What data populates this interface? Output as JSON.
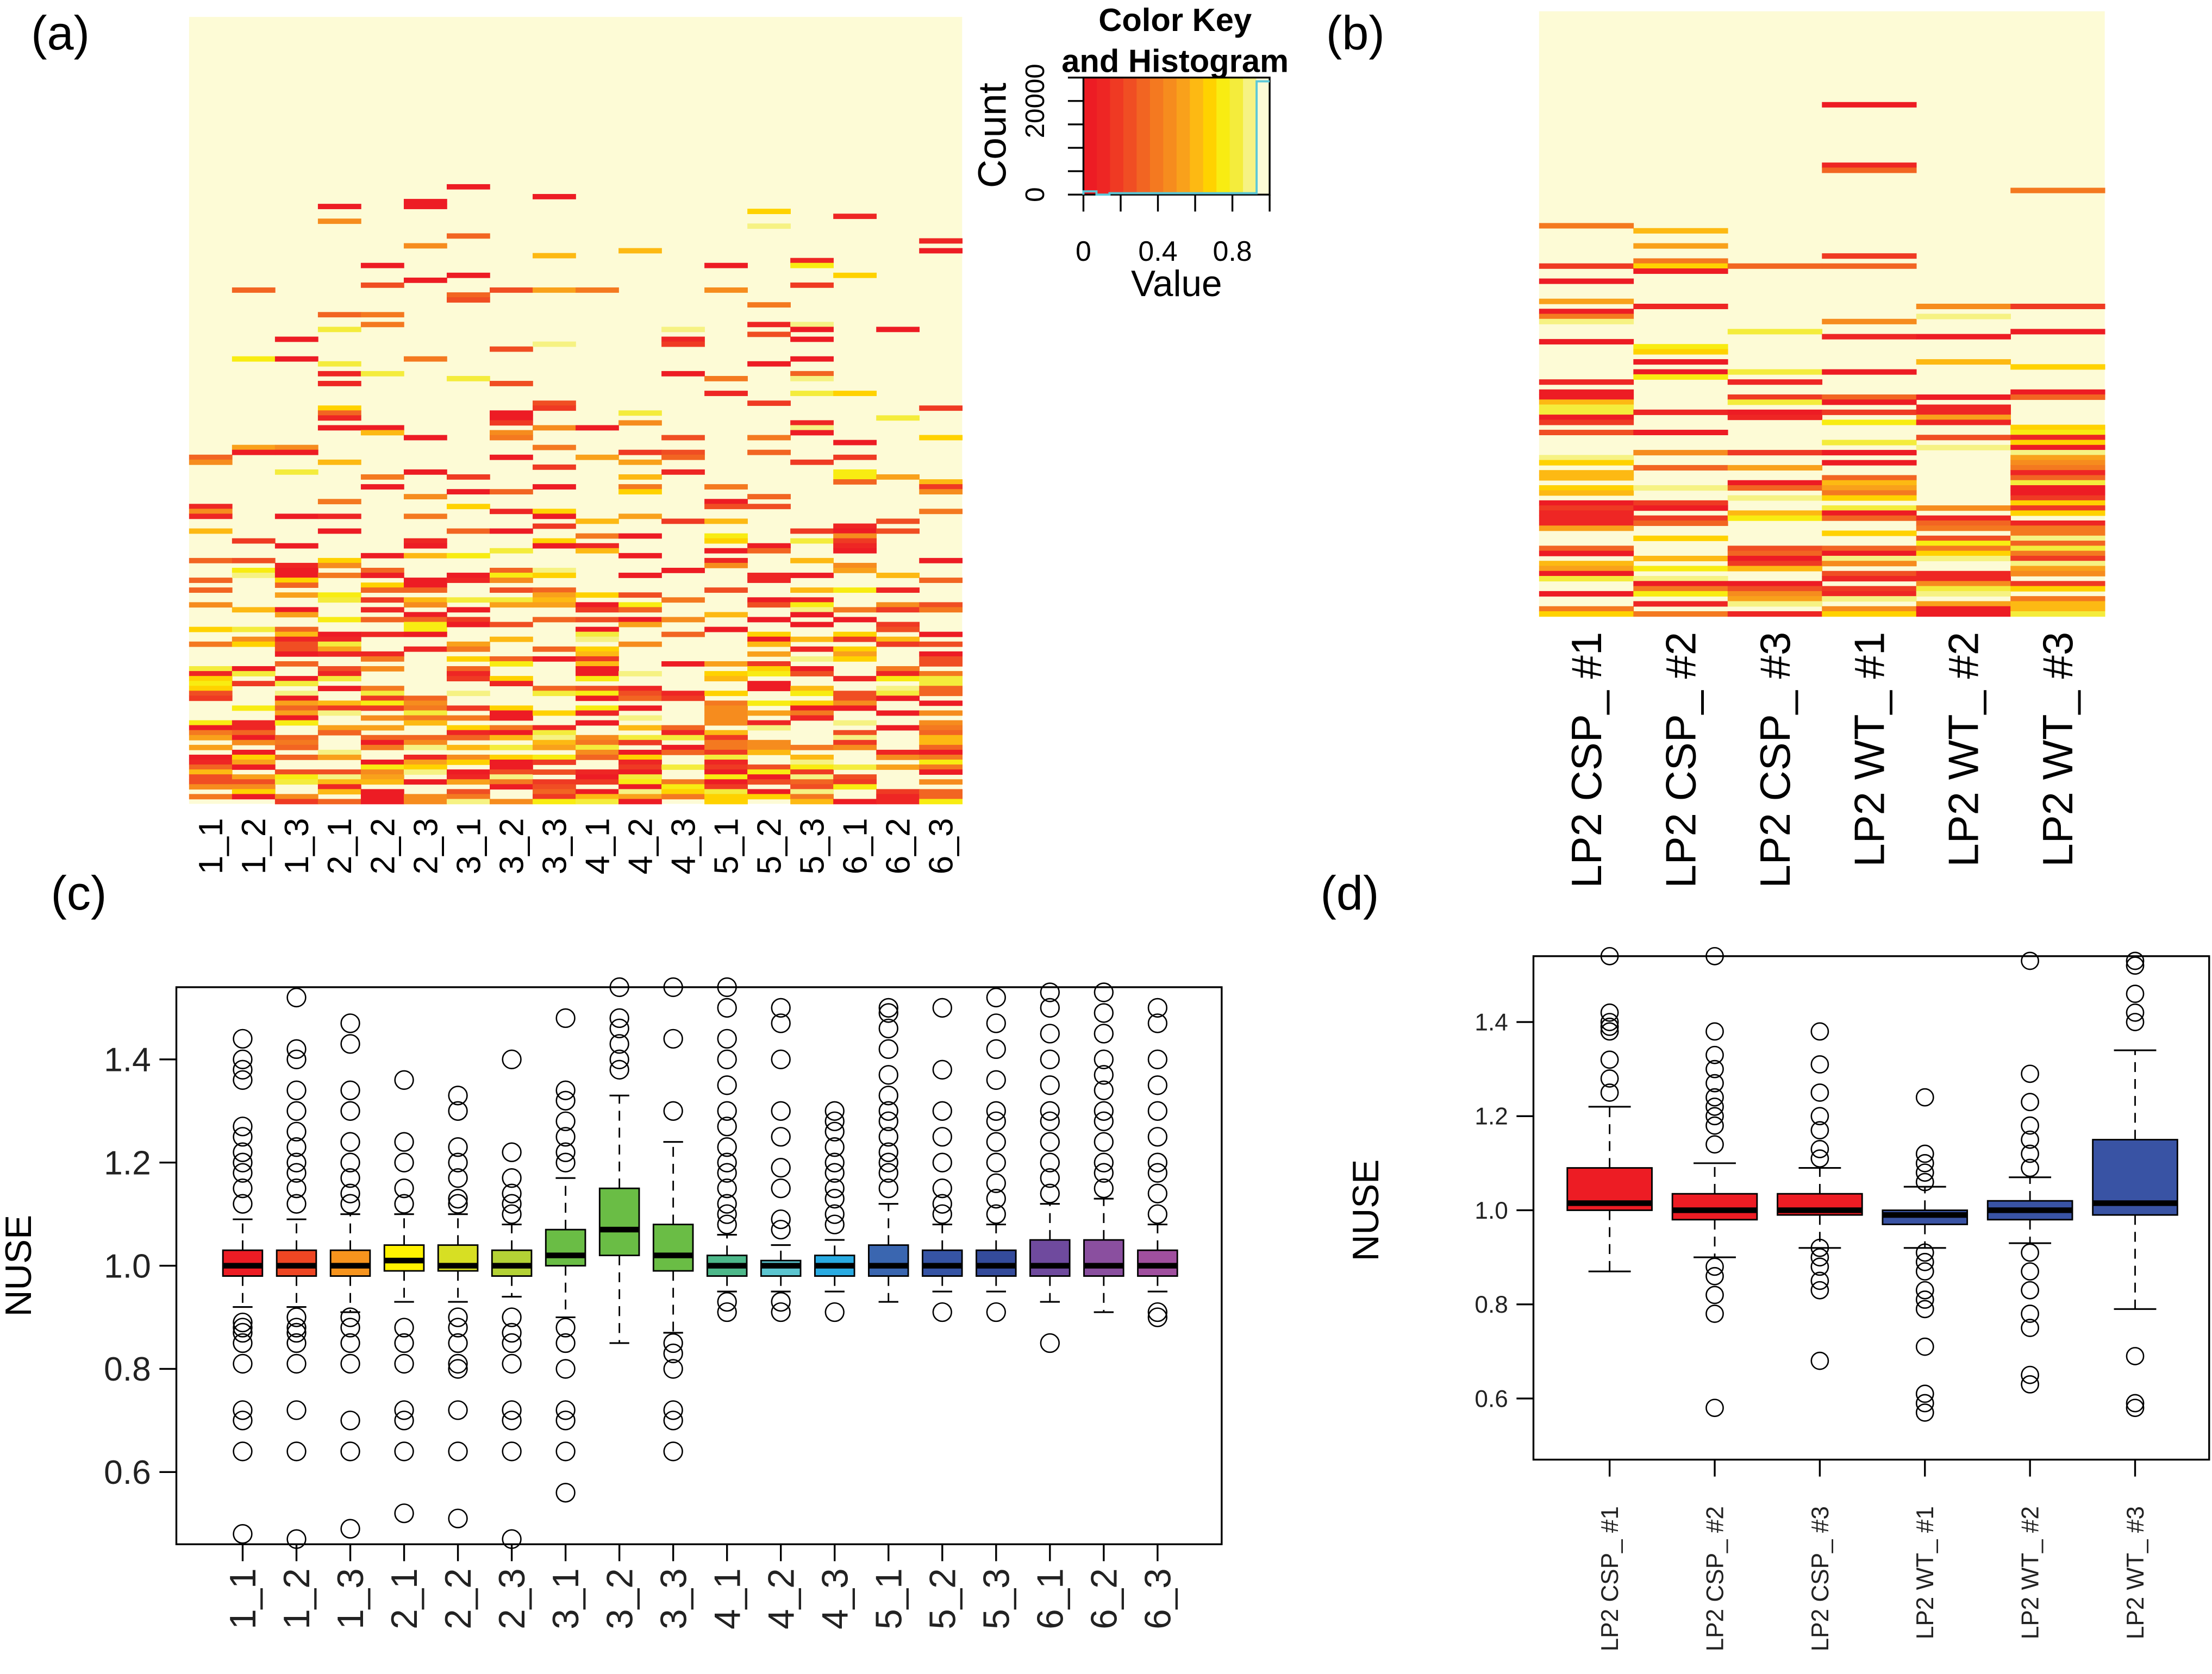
{
  "panels": {
    "a": "(a)",
    "b": "(b)",
    "c": "(c)",
    "d": "(d)"
  },
  "chart_data": [
    {
      "id": "a",
      "type": "heatmap",
      "columns": [
        "1_1",
        "1_2",
        "1_3",
        "2_1",
        "2_2",
        "2_3",
        "3_1",
        "3_2",
        "3_3",
        "4_1",
        "4_2",
        "4_3",
        "5_1",
        "5_2",
        "5_3",
        "6_1",
        "6_2",
        "6_3"
      ],
      "value_range": [
        0,
        1
      ],
      "colorkey": {
        "title_line1": "Color Key",
        "title_line2": "and Histogram",
        "xlabel": "Value",
        "ylabel": "Count",
        "x_tick_labels": [
          "0",
          "0.4",
          "0.8"
        ],
        "x_ticks": [
          0,
          0.2,
          0.4,
          0.6,
          0.8,
          1.0
        ],
        "y_tick_labels": [
          "0",
          "20000"
        ],
        "y_ticks": [
          0,
          5000,
          10000,
          15000,
          20000,
          25000
        ],
        "ylim": [
          0,
          25000
        ],
        "palette": [
          "#ed1c24",
          "#ee2624",
          "#ef3a23",
          "#f04e23",
          "#f26522",
          "#f47920",
          "#f68c1e",
          "#f9a11b",
          "#fdb913",
          "#ffd200",
          "#f8ec12",
          "#f4ec3c",
          "#f6f283",
          "#fdfbd6"
        ],
        "histogram": {
          "bin_edges": [
            0,
            0.07,
            0.14,
            0.93,
            1.0
          ],
          "counts": [
            700,
            0,
            300,
            24200
          ],
          "line_color": "#5bc8d8"
        }
      }
    },
    {
      "id": "b",
      "type": "heatmap",
      "columns": [
        "LP2 CSP_ #1",
        "LP2 CSP_ #2",
        "LP2 CSP_ #3",
        "LP2 WT_ #1",
        "LP2 WT_ #2",
        "LP2 WT_ #3"
      ],
      "value_range": [
        0,
        1
      ]
    },
    {
      "id": "c",
      "type": "boxplot",
      "ylabel": "NUSE",
      "xlabel": "",
      "ylim": [
        0.46,
        1.54
      ],
      "y_ticks": [
        0.6,
        0.8,
        1.0,
        1.2,
        1.4
      ],
      "y_tick_labels": [
        "0.6",
        "0.8",
        "1.0",
        "1.2",
        "1.4"
      ],
      "categories": [
        "1_1",
        "1_2",
        "1_3",
        "2_1",
        "2_2",
        "2_3",
        "3_1",
        "3_2",
        "3_3",
        "4_1",
        "4_2",
        "4_3",
        "5_1",
        "5_2",
        "5_3",
        "6_1",
        "6_2",
        "6_3"
      ],
      "colors": [
        "#ed1c24",
        "#ef4623",
        "#f7941d",
        "#fff200",
        "#d7df23",
        "#b4d235",
        "#6abd45",
        "#6abd45",
        "#6abd45",
        "#4db88a",
        "#5bc5d0",
        "#29abe2",
        "#3a66b0",
        "#3654a5",
        "#344b9b",
        "#6f4a9e",
        "#8a4f9f",
        "#a04f9f"
      ],
      "boxes": [
        {
          "whisker_low": 0.92,
          "q1": 0.98,
          "median": 1.0,
          "q3": 1.03,
          "whisker_high": 1.09,
          "outliers": [
            0.48,
            0.64,
            0.7,
            0.72,
            0.81,
            0.85,
            0.87,
            0.88,
            0.89,
            1.12,
            1.15,
            1.18,
            1.2,
            1.22,
            1.25,
            1.27,
            1.36,
            1.38,
            1.4,
            1.44
          ]
        },
        {
          "whisker_low": 0.92,
          "q1": 0.98,
          "median": 1.0,
          "q3": 1.03,
          "whisker_high": 1.09,
          "outliers": [
            0.47,
            0.64,
            0.72,
            0.81,
            0.85,
            0.87,
            0.88,
            0.9,
            1.12,
            1.15,
            1.18,
            1.2,
            1.23,
            1.26,
            1.3,
            1.34,
            1.4,
            1.42,
            1.52
          ]
        },
        {
          "whisker_low": 0.91,
          "q1": 0.98,
          "median": 1.0,
          "q3": 1.03,
          "whisker_high": 1.1,
          "outliers": [
            0.49,
            0.64,
            0.7,
            0.81,
            0.85,
            0.88,
            0.9,
            1.12,
            1.14,
            1.17,
            1.2,
            1.24,
            1.3,
            1.34,
            1.43,
            1.47
          ]
        },
        {
          "whisker_low": 0.93,
          "q1": 0.99,
          "median": 1.01,
          "q3": 1.04,
          "whisker_high": 1.1,
          "outliers": [
            0.52,
            0.64,
            0.7,
            0.72,
            0.81,
            0.85,
            0.88,
            1.12,
            1.15,
            1.2,
            1.24,
            1.36
          ]
        },
        {
          "whisker_low": 0.93,
          "q1": 0.99,
          "median": 1.0,
          "q3": 1.04,
          "whisker_high": 1.1,
          "outliers": [
            0.51,
            0.64,
            0.72,
            0.8,
            0.81,
            0.85,
            0.88,
            0.9,
            1.12,
            1.13,
            1.17,
            1.2,
            1.23,
            1.3,
            1.33
          ]
        },
        {
          "whisker_low": 0.94,
          "q1": 0.98,
          "median": 1.0,
          "q3": 1.03,
          "whisker_high": 1.08,
          "outliers": [
            0.47,
            0.64,
            0.7,
            0.72,
            0.81,
            0.85,
            0.87,
            0.9,
            1.1,
            1.12,
            1.14,
            1.17,
            1.22,
            1.4
          ]
        },
        {
          "whisker_low": 0.9,
          "q1": 1.0,
          "median": 1.02,
          "q3": 1.07,
          "whisker_high": 1.17,
          "outliers": [
            0.56,
            0.64,
            0.7,
            0.72,
            0.8,
            0.85,
            0.88,
            1.2,
            1.22,
            1.25,
            1.28,
            1.32,
            1.34,
            1.48
          ]
        },
        {
          "whisker_low": 0.85,
          "q1": 1.02,
          "median": 1.07,
          "q3": 1.15,
          "whisker_high": 1.33,
          "outliers": [
            1.38,
            1.4,
            1.43,
            1.46,
            1.48,
            1.54
          ]
        },
        {
          "whisker_low": 0.87,
          "q1": 0.99,
          "median": 1.02,
          "q3": 1.08,
          "whisker_high": 1.24,
          "outliers": [
            0.64,
            0.7,
            0.72,
            0.8,
            0.83,
            0.85,
            1.3,
            1.44,
            1.54
          ]
        },
        {
          "whisker_low": 0.95,
          "q1": 0.98,
          "median": 1.0,
          "q3": 1.02,
          "whisker_high": 1.06,
          "outliers": [
            0.91,
            0.93,
            1.08,
            1.1,
            1.12,
            1.15,
            1.18,
            1.2,
            1.23,
            1.27,
            1.3,
            1.35,
            1.4,
            1.44,
            1.5,
            1.54
          ]
        },
        {
          "whisker_low": 0.95,
          "q1": 0.98,
          "median": 1.0,
          "q3": 1.01,
          "whisker_high": 1.04,
          "outliers": [
            0.91,
            0.93,
            1.07,
            1.09,
            1.15,
            1.19,
            1.25,
            1.3,
            1.4,
            1.47,
            1.5
          ]
        },
        {
          "whisker_low": 0.95,
          "q1": 0.98,
          "median": 1.0,
          "q3": 1.02,
          "whisker_high": 1.05,
          "outliers": [
            0.91,
            1.08,
            1.1,
            1.13,
            1.15,
            1.18,
            1.2,
            1.23,
            1.26,
            1.28,
            1.3
          ]
        },
        {
          "whisker_low": 0.93,
          "q1": 0.98,
          "median": 1.0,
          "q3": 1.04,
          "whisker_high": 1.12,
          "outliers": [
            1.15,
            1.18,
            1.2,
            1.22,
            1.25,
            1.28,
            1.3,
            1.33,
            1.37,
            1.42,
            1.46,
            1.49,
            1.5
          ]
        },
        {
          "whisker_low": 0.95,
          "q1": 0.98,
          "median": 1.0,
          "q3": 1.03,
          "whisker_high": 1.08,
          "outliers": [
            0.91,
            1.1,
            1.12,
            1.15,
            1.2,
            1.25,
            1.3,
            1.38,
            1.5
          ]
        },
        {
          "whisker_low": 0.95,
          "q1": 0.98,
          "median": 1.0,
          "q3": 1.03,
          "whisker_high": 1.08,
          "outliers": [
            0.91,
            1.1,
            1.13,
            1.16,
            1.2,
            1.24,
            1.28,
            1.3,
            1.36,
            1.42,
            1.47,
            1.52
          ]
        },
        {
          "whisker_low": 0.93,
          "q1": 0.98,
          "median": 1.0,
          "q3": 1.05,
          "whisker_high": 1.12,
          "outliers": [
            0.85,
            1.14,
            1.17,
            1.2,
            1.24,
            1.28,
            1.3,
            1.35,
            1.4,
            1.45,
            1.5,
            1.53
          ]
        },
        {
          "whisker_low": 0.91,
          "q1": 0.98,
          "median": 1.0,
          "q3": 1.05,
          "whisker_high": 1.13,
          "outliers": [
            1.15,
            1.18,
            1.2,
            1.24,
            1.28,
            1.3,
            1.34,
            1.37,
            1.4,
            1.45,
            1.49,
            1.53
          ]
        },
        {
          "whisker_low": 0.95,
          "q1": 0.98,
          "median": 1.0,
          "q3": 1.03,
          "whisker_high": 1.08,
          "outliers": [
            0.9,
            0.91,
            1.1,
            1.14,
            1.18,
            1.2,
            1.25,
            1.3,
            1.35,
            1.4,
            1.47,
            1.5
          ]
        }
      ]
    },
    {
      "id": "d",
      "type": "boxplot",
      "ylabel": "NUSE",
      "xlabel": "",
      "ylim": [
        0.47,
        1.54
      ],
      "y_ticks": [
        0.6,
        0.8,
        1.0,
        1.2,
        1.4
      ],
      "y_tick_labels": [
        "0.6",
        "0.8",
        "1.0",
        "1.2",
        "1.4"
      ],
      "categories": [
        "LP2 CSP_ #1",
        "LP2 CSP_ #2",
        "LP2 CSP_ #3",
        "LP2 WT_ #1",
        "LP2 WT_ #2",
        "LP2 WT_ #3"
      ],
      "colors": [
        "#ed1c24",
        "#ed1c24",
        "#ed1c24",
        "#3953a4",
        "#3953a4",
        "#3953a4"
      ],
      "boxes": [
        {
          "whisker_low": 0.87,
          "q1": 1.0,
          "median": 1.015,
          "q3": 1.09,
          "whisker_high": 1.22,
          "outliers": [
            1.25,
            1.28,
            1.32,
            1.38,
            1.39,
            1.4,
            1.42,
            1.54
          ]
        },
        {
          "whisker_low": 0.9,
          "q1": 0.98,
          "median": 1.0,
          "q3": 1.035,
          "whisker_high": 1.1,
          "outliers": [
            0.58,
            0.78,
            0.82,
            0.86,
            0.88,
            1.14,
            1.18,
            1.2,
            1.22,
            1.24,
            1.27,
            1.3,
            1.33,
            1.38,
            1.54
          ]
        },
        {
          "whisker_low": 0.92,
          "q1": 0.99,
          "median": 1.0,
          "q3": 1.035,
          "whisker_high": 1.09,
          "outliers": [
            0.68,
            0.83,
            0.85,
            0.88,
            0.9,
            0.92,
            1.11,
            1.13,
            1.17,
            1.2,
            1.25,
            1.31,
            1.38
          ]
        },
        {
          "whisker_low": 0.92,
          "q1": 0.97,
          "median": 0.99,
          "q3": 1.0,
          "whisker_high": 1.05,
          "outliers": [
            0.57,
            0.59,
            0.61,
            0.71,
            0.79,
            0.81,
            0.83,
            0.87,
            0.89,
            0.91,
            1.06,
            1.08,
            1.1,
            1.12,
            1.24
          ]
        },
        {
          "whisker_low": 0.93,
          "q1": 0.98,
          "median": 1.0,
          "q3": 1.02,
          "whisker_high": 1.07,
          "outliers": [
            0.63,
            0.65,
            0.75,
            0.78,
            0.83,
            0.87,
            0.91,
            1.09,
            1.12,
            1.15,
            1.18,
            1.23,
            1.29,
            1.53
          ]
        },
        {
          "whisker_low": 0.79,
          "q1": 0.99,
          "median": 1.015,
          "q3": 1.15,
          "whisker_high": 1.34,
          "outliers": [
            0.58,
            0.59,
            0.69,
            1.4,
            1.42,
            1.46,
            1.52,
            1.53
          ]
        }
      ]
    }
  ]
}
